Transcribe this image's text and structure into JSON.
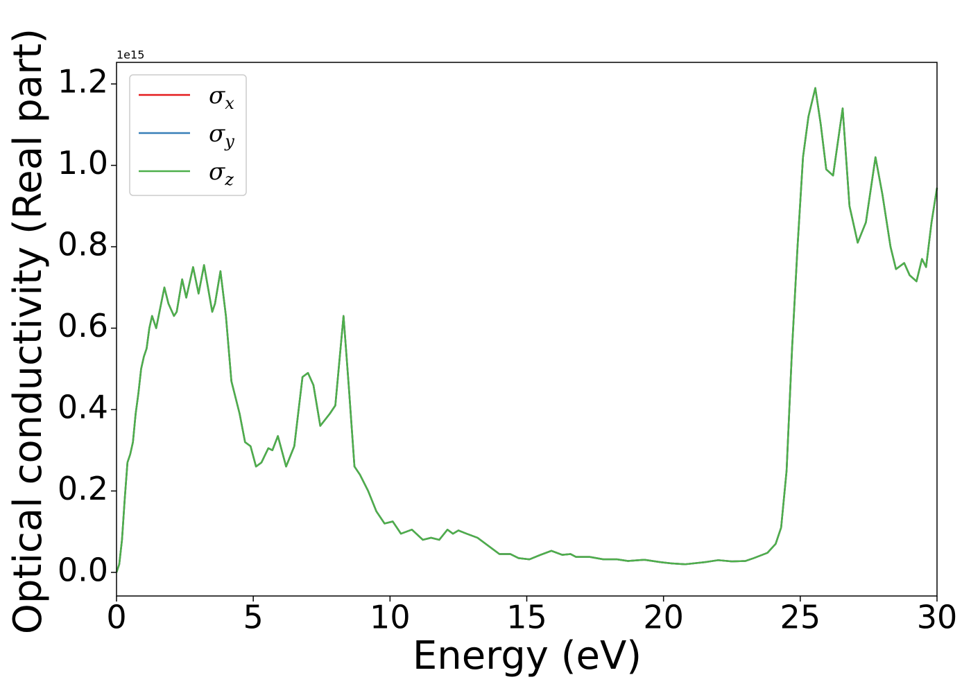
{
  "chart_data": {
    "type": "line",
    "xlabel": "Energy (eV)",
    "ylabel": "Optical conductivity (Real part)",
    "y_offset_label": "1e15",
    "legend": "upper left",
    "xlim": [
      0,
      30
    ],
    "ylim": [
      -0.058,
      1.253
    ],
    "xticks": [
      0,
      5,
      10,
      15,
      20,
      25,
      30
    ],
    "yticks": [
      {
        "value": 0,
        "label": "0.0"
      },
      0.2,
      0.4,
      0.6,
      0.8,
      {
        "value": 1,
        "label": "1.0"
      },
      1.2
    ],
    "x": [
      0,
      0.1,
      0.2,
      0.3,
      0.4,
      0.5,
      0.6,
      0.7,
      0.8,
      0.9,
      1.0,
      1.1,
      1.2,
      1.3,
      1.45,
      1.6,
      1.75,
      1.9,
      2.1,
      2.2,
      2.4,
      2.55,
      2.8,
      3.0,
      3.2,
      3.5,
      3.6,
      3.8,
      4.0,
      4.2,
      4.5,
      4.7,
      4.9,
      5.1,
      5.3,
      5.55,
      5.7,
      5.9,
      6.2,
      6.5,
      6.8,
      7.0,
      7.2,
      7.45,
      7.8,
      8.0,
      8.3,
      8.5,
      8.7,
      8.9,
      9.2,
      9.5,
      9.8,
      10.1,
      10.4,
      10.8,
      11.2,
      11.5,
      11.8,
      12.1,
      12.3,
      12.5,
      12.8,
      13.2,
      13.6,
      14.0,
      14.4,
      14.7,
      15.1,
      15.5,
      15.9,
      16.3,
      16.6,
      16.8,
      17.3,
      17.8,
      18.3,
      18.7,
      19.3,
      19.9,
      20.3,
      20.8,
      21.5,
      22.0,
      22.5,
      23.0,
      23.3,
      23.8,
      24.1,
      24.3,
      24.5,
      24.7,
      24.9,
      25.1,
      25.3,
      25.55,
      25.75,
      25.95,
      26.2,
      26.55,
      26.8,
      27.1,
      27.4,
      27.75,
      28.0,
      28.3,
      28.5,
      28.8,
      29.0,
      29.25,
      29.45,
      29.6,
      29.8,
      30.0
    ],
    "series": [
      {
        "name": "σx",
        "color": "#e41a1c",
        "values": [
          0,
          0.02,
          0.08,
          0.18,
          0.27,
          0.29,
          0.32,
          0.39,
          0.44,
          0.5,
          0.53,
          0.55,
          0.6,
          0.63,
          0.6,
          0.65,
          0.7,
          0.66,
          0.63,
          0.64,
          0.72,
          0.675,
          0.75,
          0.685,
          0.755,
          0.64,
          0.66,
          0.74,
          0.63,
          0.47,
          0.39,
          0.32,
          0.31,
          0.26,
          0.27,
          0.305,
          0.3,
          0.335,
          0.26,
          0.31,
          0.48,
          0.49,
          0.46,
          0.36,
          0.39,
          0.41,
          0.63,
          0.45,
          0.26,
          0.24,
          0.2,
          0.15,
          0.12,
          0.125,
          0.095,
          0.105,
          0.08,
          0.085,
          0.08,
          0.105,
          0.095,
          0.103,
          0.095,
          0.085,
          0.065,
          0.045,
          0.045,
          0.035,
          0.032,
          0.043,
          0.053,
          0.043,
          0.045,
          0.038,
          0.038,
          0.032,
          0.032,
          0.028,
          0.031,
          0.025,
          0.022,
          0.02,
          0.025,
          0.03,
          0.027,
          0.028,
          0.035,
          0.048,
          0.07,
          0.11,
          0.25,
          0.55,
          0.8,
          1.02,
          1.12,
          1.19,
          1.1,
          0.99,
          0.975,
          1.14,
          0.9,
          0.81,
          0.86,
          1.02,
          0.93,
          0.8,
          0.745,
          0.76,
          0.73,
          0.715,
          0.77,
          0.75,
          0.86,
          0.945
        ]
      },
      {
        "name": "σy",
        "color": "#377eb8",
        "values": [
          0,
          0.02,
          0.08,
          0.18,
          0.27,
          0.29,
          0.32,
          0.39,
          0.44,
          0.5,
          0.53,
          0.55,
          0.6,
          0.63,
          0.6,
          0.65,
          0.7,
          0.66,
          0.63,
          0.64,
          0.72,
          0.675,
          0.75,
          0.685,
          0.755,
          0.64,
          0.66,
          0.74,
          0.63,
          0.47,
          0.39,
          0.32,
          0.31,
          0.26,
          0.27,
          0.305,
          0.3,
          0.335,
          0.26,
          0.31,
          0.48,
          0.49,
          0.46,
          0.36,
          0.39,
          0.41,
          0.63,
          0.45,
          0.26,
          0.24,
          0.2,
          0.15,
          0.12,
          0.125,
          0.095,
          0.105,
          0.08,
          0.085,
          0.08,
          0.105,
          0.095,
          0.103,
          0.095,
          0.085,
          0.065,
          0.045,
          0.045,
          0.035,
          0.032,
          0.043,
          0.053,
          0.043,
          0.045,
          0.038,
          0.038,
          0.032,
          0.032,
          0.028,
          0.031,
          0.025,
          0.022,
          0.02,
          0.025,
          0.03,
          0.027,
          0.028,
          0.035,
          0.048,
          0.07,
          0.11,
          0.25,
          0.55,
          0.8,
          1.02,
          1.12,
          1.19,
          1.1,
          0.99,
          0.975,
          1.14,
          0.9,
          0.81,
          0.86,
          1.02,
          0.93,
          0.8,
          0.745,
          0.76,
          0.73,
          0.715,
          0.77,
          0.75,
          0.86,
          0.945
        ]
      },
      {
        "name": "σz",
        "color": "#4daf4a",
        "values": [
          0,
          0.02,
          0.08,
          0.18,
          0.27,
          0.29,
          0.32,
          0.39,
          0.44,
          0.5,
          0.53,
          0.55,
          0.6,
          0.63,
          0.6,
          0.65,
          0.7,
          0.66,
          0.63,
          0.64,
          0.72,
          0.675,
          0.75,
          0.685,
          0.755,
          0.64,
          0.66,
          0.74,
          0.63,
          0.47,
          0.39,
          0.32,
          0.31,
          0.26,
          0.27,
          0.305,
          0.3,
          0.335,
          0.26,
          0.31,
          0.48,
          0.49,
          0.46,
          0.36,
          0.39,
          0.41,
          0.63,
          0.45,
          0.26,
          0.24,
          0.2,
          0.15,
          0.12,
          0.125,
          0.095,
          0.105,
          0.08,
          0.085,
          0.08,
          0.105,
          0.095,
          0.103,
          0.095,
          0.085,
          0.065,
          0.045,
          0.045,
          0.035,
          0.032,
          0.043,
          0.053,
          0.043,
          0.045,
          0.038,
          0.038,
          0.032,
          0.032,
          0.028,
          0.031,
          0.025,
          0.022,
          0.02,
          0.025,
          0.03,
          0.027,
          0.028,
          0.035,
          0.048,
          0.07,
          0.11,
          0.25,
          0.55,
          0.8,
          1.02,
          1.12,
          1.19,
          1.1,
          0.99,
          0.975,
          1.14,
          0.9,
          0.81,
          0.86,
          1.02,
          0.93,
          0.8,
          0.745,
          0.76,
          0.73,
          0.715,
          0.77,
          0.75,
          0.86,
          0.945
        ]
      }
    ]
  }
}
